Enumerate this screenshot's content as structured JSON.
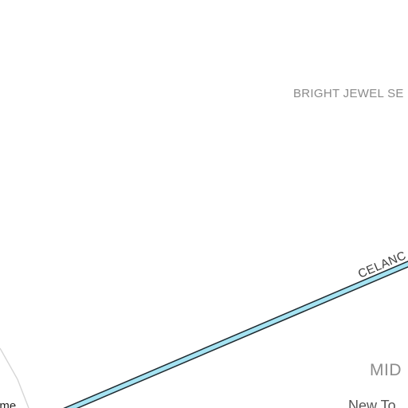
{
  "map": {
    "colors": {
      "background": "#ffffff",
      "highway_fill": "#a6e3f2",
      "highway_casing": "#1e2a30",
      "minor_road": "#d6d6d6"
    },
    "labels": {
      "area": "BRIGHT JEWEL SE",
      "highway": "CELANC",
      "district": "MID",
      "sub_district": "New To",
      "street": "ime"
    }
  }
}
